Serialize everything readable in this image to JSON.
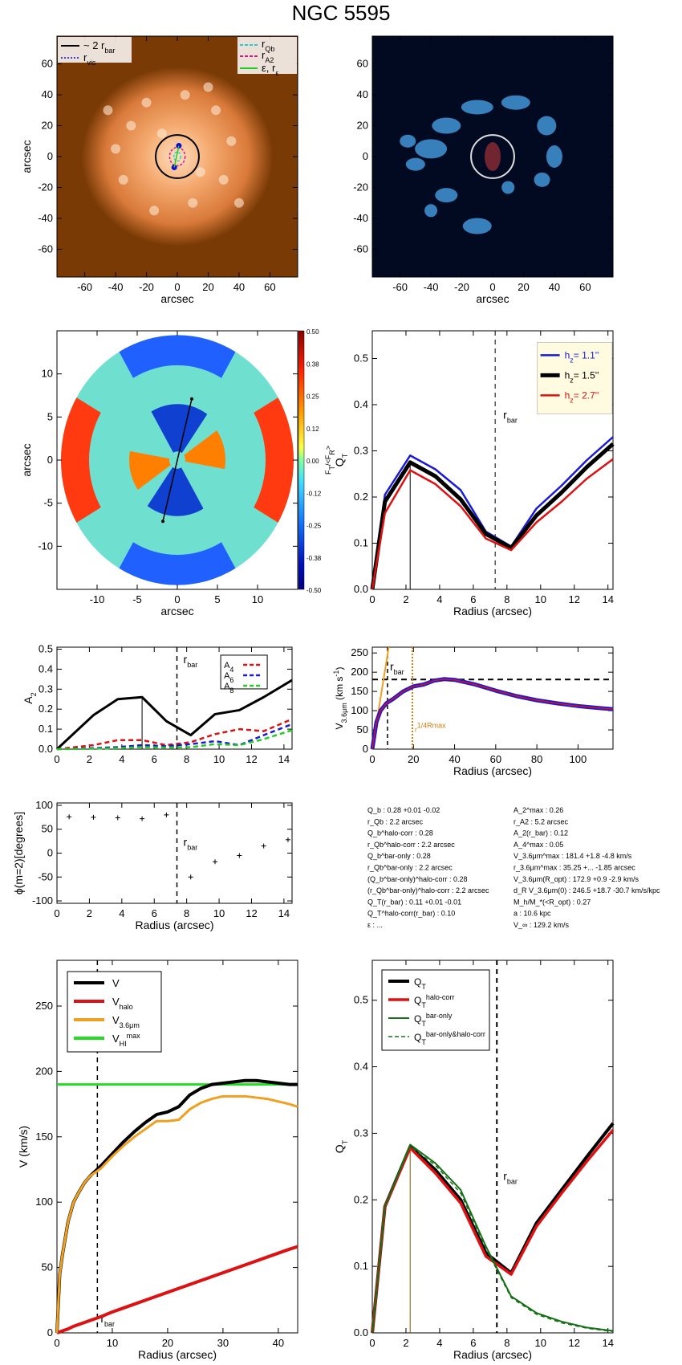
{
  "title": "NGC 5595",
  "chart_data": [
    {
      "type": "image",
      "panel": "optical image",
      "xlabel": "arcsec",
      "ylabel": "arcsec",
      "xlim": [
        -78,
        78
      ],
      "ylim": [
        -78,
        78
      ],
      "xticks": [
        "-60",
        "-40",
        "-20",
        "0",
        "20",
        "40",
        "60"
      ],
      "yticks": [
        "60",
        "40",
        "20",
        "0",
        "-20",
        "-40",
        "-60"
      ],
      "legend_left": [
        "~ 2 r_bar",
        "r_vis"
      ],
      "legend_right": [
        "r_Qb",
        "r_A2",
        "ε, r_ε"
      ],
      "colors": {
        "bg": "#7a3a05",
        "galaxy": "#f4a36a",
        "circle": "#000000",
        "rvis": "#0a0ad0",
        "rqb": "#22cccc",
        "ra2": "#e0148c",
        "eps": "#22cc22"
      }
    },
    {
      "type": "image",
      "panel": "residual image",
      "xlabel": "arcsec",
      "xlim": [
        -78,
        78
      ],
      "ylim": [
        -78,
        78
      ],
      "xticks": [
        "-60",
        "-40",
        "-20",
        "0",
        "20",
        "40",
        "60"
      ],
      "yticks": [
        "60",
        "40",
        "20",
        "0",
        "-20",
        "-40",
        "-60"
      ],
      "colors": {
        "bg": "#020a22",
        "arms": "#4aa8f0"
      }
    },
    {
      "type": "heatmap",
      "panel": "force ratio map",
      "xlabel": "arcsec",
      "ylabel": "arcsec",
      "xlim": [
        -15,
        15
      ],
      "ylim": [
        -15,
        15
      ],
      "xticks": [
        "-10",
        "-5",
        "0",
        "5",
        "10"
      ],
      "yticks": [
        "10",
        "5",
        "0",
        "-5",
        "-10"
      ],
      "colorbar_label": "F_T/<F_R>",
      "colorbar_ticks": [
        "0.50",
        "0.38",
        "0.25",
        "0.12",
        "0.00",
        "-0.12",
        "-0.25",
        "-0.38",
        "-0.50"
      ],
      "bar_line": {
        "x": [
          -1.8,
          1.8
        ],
        "y": [
          -7.1,
          7.1
        ]
      }
    },
    {
      "type": "line",
      "panel": "QT vs radius",
      "xlabel": "Radius (arcsec)",
      "ylabel": "Q_T",
      "xlim": [
        0,
        14.3
      ],
      "ylim": [
        0,
        0.56
      ],
      "xticks": [
        "0",
        "2",
        "4",
        "6",
        "8",
        "10",
        "12",
        "14"
      ],
      "yticks": [
        "0.0",
        "0.1",
        "0.2",
        "0.3",
        "0.4",
        "0.5"
      ],
      "rbar_label": "r_bar",
      "rbar": 7.3,
      "x": [
        0,
        0.75,
        2.25,
        3.75,
        5.25,
        6.75,
        8.25,
        9.75,
        11.25,
        12.75,
        14.3
      ],
      "series": [
        {
          "name": "h_z= 1.1''",
          "color": "#1a1ad8",
          "values": [
            0,
            0.205,
            0.29,
            0.26,
            0.215,
            0.125,
            0.093,
            0.175,
            0.225,
            0.28,
            0.33
          ]
        },
        {
          "name": "h_z= 1.5''",
          "color": "#000000",
          "values": [
            0,
            0.19,
            0.275,
            0.245,
            0.195,
            0.12,
            0.09,
            0.16,
            0.21,
            0.265,
            0.315
          ]
        },
        {
          "name": "h_z= 2.7''",
          "color": "#dd1111",
          "values": [
            0,
            0.165,
            0.258,
            0.228,
            0.18,
            0.11,
            0.085,
            0.145,
            0.19,
            0.24,
            0.282
          ]
        }
      ]
    },
    {
      "type": "line",
      "panel": "A2 vs radius",
      "ylabel": "A_2",
      "xlim": [
        0,
        14.5
      ],
      "ylim": [
        0,
        0.51
      ],
      "xticks": [
        "0",
        "2",
        "4",
        "6",
        "8",
        "10",
        "12",
        "14"
      ],
      "yticks": [
        "0.0",
        "0.1",
        "0.2",
        "0.3",
        "0.4",
        "0.5"
      ],
      "rbar_label": "r_bar",
      "rbar": 7.4,
      "x": [
        0,
        2.25,
        3.75,
        5.25,
        6.75,
        8.25,
        9.75,
        11.25,
        12.75,
        14.5
      ],
      "series": [
        {
          "name": "A_2",
          "color": "#000000",
          "values": [
            0,
            0.17,
            0.25,
            0.26,
            0.14,
            0.07,
            0.175,
            0.195,
            0.26,
            0.345
          ]
        },
        {
          "name": "A_4",
          "color": "#dd1111",
          "values": [
            0,
            0.02,
            0.045,
            0.045,
            0.02,
            0.035,
            0.075,
            0.1,
            0.09,
            0.15
          ]
        },
        {
          "name": "A_6",
          "color": "#1a1ad8",
          "values": [
            0,
            0.005,
            0.01,
            0.02,
            0.015,
            0.025,
            0.04,
            0.02,
            0.07,
            0.125
          ]
        },
        {
          "name": "A_8",
          "color": "#22cc22",
          "values": [
            0,
            0.002,
            0.005,
            0.01,
            0.008,
            0.01,
            0.025,
            0.02,
            0.05,
            0.095
          ]
        }
      ],
      "legend": [
        "A_4",
        "A_6",
        "A_8"
      ]
    },
    {
      "type": "line",
      "panel": "rotation curve 3.6um",
      "xlabel": "Radius (arcsec)",
      "ylabel": "V_3.6μm (km s^-1)",
      "xlim": [
        0,
        117
      ],
      "ylim": [
        0,
        265
      ],
      "xticks": [
        "0",
        "20",
        "40",
        "60",
        "80",
        "100"
      ],
      "yticks": [
        "0",
        "50",
        "100",
        "150",
        "200",
        "250"
      ],
      "rbar_label": "r_bar",
      "rbar": 7.4,
      "r_label": "r_max^(1/4R_max)",
      "r_line": 19.5,
      "v_flat": 181,
      "x": [
        0,
        2,
        4,
        7,
        10,
        15,
        20,
        25,
        30,
        35,
        40,
        50,
        60,
        70,
        80,
        90,
        100,
        110,
        117
      ],
      "series": [
        {
          "name": "V_3.6μm",
          "color": "#1a1ad8",
          "values": [
            0,
            70,
            100,
            120,
            130,
            150,
            163,
            168,
            178,
            182,
            180,
            168,
            152,
            138,
            127,
            119,
            112,
            107,
            104
          ]
        }
      ]
    },
    {
      "type": "scatter",
      "panel": "bar phase",
      "xlabel": "Radius (arcsec)",
      "ylabel": "ϕ(m=2)[degrees]",
      "xlim": [
        0,
        14.5
      ],
      "ylim": [
        -105,
        105
      ],
      "xticks": [
        "0",
        "2",
        "4",
        "6",
        "8",
        "10",
        "12",
        "14"
      ],
      "yticks": [
        "100",
        "50",
        "0",
        "-50",
        "-100"
      ],
      "rbar_label": "r_bar",
      "rbar": 7.4,
      "x": [
        0.75,
        2.25,
        3.75,
        5.25,
        6.75,
        8.25,
        9.75,
        11.25,
        12.75,
        14.25
      ],
      "values": [
        76,
        75,
        74,
        72,
        80,
        -50,
        -18,
        -5,
        15,
        28
      ]
    },
    {
      "type": "table",
      "panel": "parameters",
      "left": [
        "Q_b : 0.28 +0.01 -0.02",
        "r_Qb : 2.2 arcsec",
        "Q_b^halo-corr : 0.28",
        "r_Qb^halo-corr : 2.2 arcsec",
        "Q_b^bar-only : 0.28",
        "r_Qb^bar-only : 2.2 arcsec",
        "(Q_b^bar-only)^halo-corr : 0.28",
        "(r_Qb^bar-only)^halo-corr : 2.2 arcsec",
        "Q_T(r_bar) : 0.11 +0.01 -0.01",
        "Q_T^halo-corr(r_bar) : 0.10",
        "ε : ..."
      ],
      "right": [
        "A_2^max : 0.26",
        "r_A2 : 5.2 arcsec",
        "A_2(r_bar) : 0.12",
        "A_4^max : 0.05",
        "V_3.6μm^max : 181.4 +1.8 -4.8 km/s",
        "r_3.6μm^max : 35.25 +... -1.85 arcsec",
        "V_3.6μm(R_opt) : 172.9 +0.9 -2.9 km/s",
        "d_R V_3.6μm(0) : 246.5 +18.7 -30.7 km/s/kpc",
        "M_h/M_*(<R_opt) : 0.27",
        "a : 10.6 kpc",
        "V_∞ : 129.2 km/s"
      ]
    },
    {
      "type": "line",
      "panel": "rotation curve decomposition",
      "xlabel": "Radius (arcsec)",
      "ylabel": "V (km/s)",
      "xlim": [
        0,
        43.5
      ],
      "ylim": [
        0,
        285
      ],
      "xticks": [
        "0",
        "10",
        "20",
        "30",
        "40"
      ],
      "yticks": [
        "0",
        "50",
        "100",
        "150",
        "200",
        "250"
      ],
      "rbar_label": "r_bar",
      "rbar": 7.3,
      "x": [
        0,
        0.5,
        1,
        2,
        3,
        4,
        5,
        6,
        7,
        8,
        10,
        12,
        14,
        16,
        18,
        20,
        22,
        24,
        26,
        28,
        30,
        32,
        34,
        36,
        38,
        40,
        42,
        43.5
      ],
      "series": [
        {
          "name": "V",
          "color": "#000000",
          "values": [
            0,
            45,
            60,
            85,
            100,
            108,
            115,
            120,
            124,
            128,
            137,
            146,
            154,
            161,
            167,
            169,
            173,
            182,
            187,
            190,
            191,
            192,
            193,
            193,
            192,
            191,
            190,
            190
          ]
        },
        {
          "name": "V_halo",
          "color": "#dd1111",
          "values": [
            0,
            0.7,
            1.5,
            3,
            5,
            6.5,
            8,
            9.5,
            11,
            12.5,
            16,
            19,
            22,
            25,
            28,
            31,
            34,
            37,
            40,
            43,
            46,
            49,
            52,
            55,
            58,
            61,
            64,
            66
          ]
        },
        {
          "name": "V_3.6μm",
          "color": "#f0a020",
          "values": [
            0,
            45,
            60,
            85,
            100,
            108,
            115,
            120,
            123,
            126,
            135,
            143,
            150,
            156,
            162,
            162,
            163,
            171,
            176,
            179,
            181,
            181,
            181,
            180,
            179,
            177,
            175,
            173
          ]
        },
        {
          "name": "V_HI^max",
          "color": "#22dd22",
          "values": [
            190,
            190,
            190,
            190,
            190,
            190,
            190,
            190,
            190,
            190,
            190,
            190,
            190,
            190,
            190,
            190,
            190,
            190,
            190,
            190,
            190,
            190,
            190,
            190,
            190,
            190,
            190,
            190
          ]
        }
      ]
    },
    {
      "type": "line",
      "panel": "QT corrections",
      "xlabel": "Radius (arcsec)",
      "ylabel": "Q_T",
      "xlim": [
        0,
        14.3
      ],
      "ylim": [
        0,
        0.56
      ],
      "xticks": [
        "0",
        "2",
        "4",
        "6",
        "8",
        "10",
        "12",
        "14"
      ],
      "yticks": [
        "0.0",
        "0.1",
        "0.2",
        "0.3",
        "0.4",
        "0.5"
      ],
      "rbar_label": "r_bar",
      "rbar": 7.4,
      "x": [
        0,
        0.75,
        2.25,
        3.75,
        5.25,
        6.75,
        8.25,
        9.75,
        11.25,
        12.75,
        14.3
      ],
      "series": [
        {
          "name": "Q_T",
          "color": "#000000",
          "values": [
            0,
            0.19,
            0.28,
            0.245,
            0.2,
            0.12,
            0.09,
            0.165,
            0.215,
            0.265,
            0.315
          ]
        },
        {
          "name": "Q_T^halo-corr",
          "color": "#dd1111",
          "values": [
            0,
            0.19,
            0.278,
            0.24,
            0.195,
            0.115,
            0.088,
            0.16,
            0.21,
            0.258,
            0.305
          ]
        },
        {
          "name": "Q_T^bar-only",
          "color": "#157015",
          "values": [
            0,
            0.19,
            0.283,
            0.255,
            0.215,
            0.13,
            0.055,
            0.03,
            0.017,
            0.008,
            0.003
          ]
        },
        {
          "name": "Q_T^bar-only&halo-corr",
          "color": "#157015",
          "dashed": true,
          "values": [
            0,
            0.19,
            0.28,
            0.252,
            0.21,
            0.127,
            0.053,
            0.028,
            0.015,
            0.007,
            0.002
          ]
        }
      ]
    }
  ]
}
